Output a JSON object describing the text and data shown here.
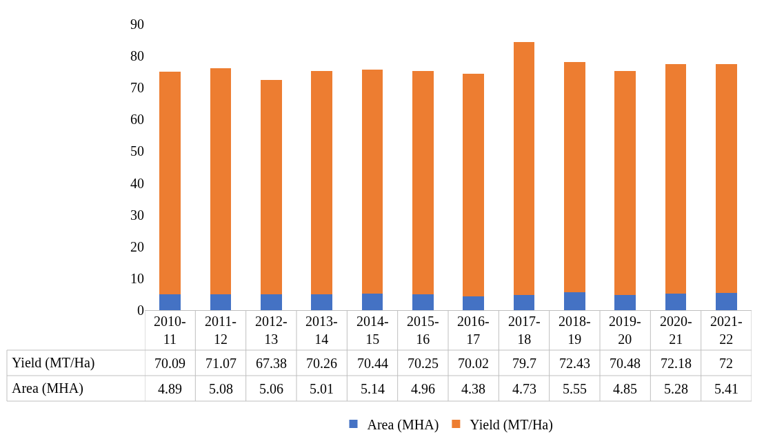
{
  "chart_data": {
    "type": "bar",
    "stacked": true,
    "categories": [
      "2010-11",
      "2011-12",
      "2012-13",
      "2013-14",
      "2014-15",
      "2015-16",
      "2016-17",
      "2017-18",
      "2018-19",
      "2019-20",
      "2020-21",
      "2021-22"
    ],
    "series": [
      {
        "name": "Area (MHA)",
        "color": "#4472c4",
        "values": [
          4.89,
          5.08,
          5.06,
          5.01,
          5.14,
          4.96,
          4.38,
          4.73,
          5.55,
          4.85,
          5.28,
          5.41
        ]
      },
      {
        "name": "Yield (MT/Ha)",
        "color": "#ed7d31",
        "values": [
          70.09,
          71.07,
          67.38,
          70.26,
          70.44,
          70.25,
          70.02,
          79.7,
          72.43,
          70.48,
          72.18,
          72
        ]
      }
    ],
    "ylim": [
      0,
      90
    ],
    "yticks": [
      0,
      10,
      20,
      30,
      40,
      50,
      60,
      70,
      80,
      90
    ],
    "grid": false,
    "legend": "bottom",
    "data_labels": true
  }
}
